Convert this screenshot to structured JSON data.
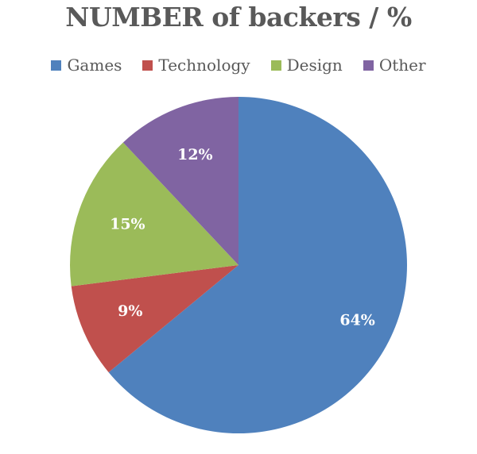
{
  "chart_data": {
    "type": "pie",
    "title": "NUMBER of backers / %",
    "legend_position": "top",
    "start_angle_deg": 0,
    "direction": "clockwise",
    "slices": [
      {
        "name": "Games",
        "value": 64,
        "label": "64%",
        "color": "#4F81BD"
      },
      {
        "name": "Technology",
        "value": 9,
        "label": "9%",
        "color": "#C0504D"
      },
      {
        "name": "Design",
        "value": 15,
        "label": "15%",
        "color": "#9BBB59"
      },
      {
        "name": "Other",
        "value": 12,
        "label": "12%",
        "color": "#8064A2"
      }
    ]
  }
}
